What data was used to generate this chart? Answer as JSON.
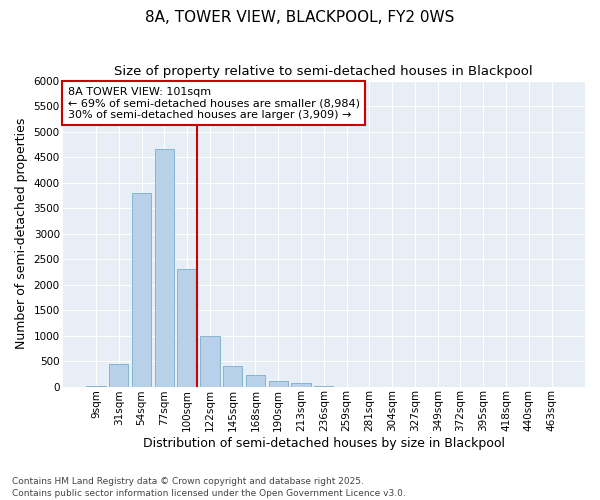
{
  "title": "8A, TOWER VIEW, BLACKPOOL, FY2 0WS",
  "subtitle": "Size of property relative to semi-detached houses in Blackpool",
  "xlabel": "Distribution of semi-detached houses by size in Blackpool",
  "ylabel": "Number of semi-detached properties",
  "categories": [
    "9sqm",
    "31sqm",
    "54sqm",
    "77sqm",
    "100sqm",
    "122sqm",
    "145sqm",
    "168sqm",
    "190sqm",
    "213sqm",
    "236sqm",
    "259sqm",
    "281sqm",
    "304sqm",
    "327sqm",
    "349sqm",
    "372sqm",
    "395sqm",
    "418sqm",
    "440sqm",
    "463sqm"
  ],
  "values": [
    20,
    450,
    3800,
    4650,
    2300,
    1000,
    400,
    230,
    100,
    60,
    10,
    0,
    0,
    0,
    0,
    0,
    0,
    0,
    0,
    0,
    0
  ],
  "bar_color": "#b8d0e8",
  "bar_edge_color": "#7aadd0",
  "vline_color": "#cc0000",
  "annotation_text": "8A TOWER VIEW: 101sqm\n← 69% of semi-detached houses are smaller (8,984)\n30% of semi-detached houses are larger (3,909) →",
  "annotation_box_color": "#ffffff",
  "annotation_box_edge": "#cc0000",
  "ylim": [
    0,
    6000
  ],
  "yticks": [
    0,
    500,
    1000,
    1500,
    2000,
    2500,
    3000,
    3500,
    4000,
    4500,
    5000,
    5500,
    6000
  ],
  "footnote": "Contains HM Land Registry data © Crown copyright and database right 2025.\nContains public sector information licensed under the Open Government Licence v3.0.",
  "bg_color": "#e8eef5",
  "grid_color": "#ffffff",
  "title_fontsize": 11,
  "subtitle_fontsize": 9.5,
  "axis_label_fontsize": 9,
  "tick_fontsize": 7.5,
  "footnote_fontsize": 6.5
}
